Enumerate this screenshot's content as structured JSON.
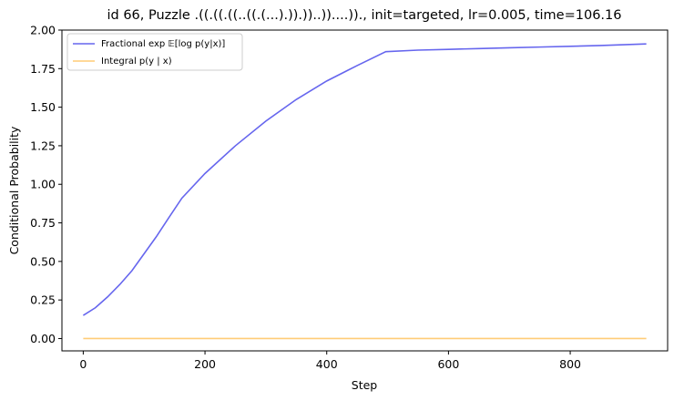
{
  "chart_data": {
    "type": "line",
    "title": "id 66, Puzzle .((.((.((..((.(...).)).))..))....))., init=targeted, lr=0.005, time=106.16",
    "xlabel": "Step",
    "ylabel": "Conditional Probability",
    "xlim": [
      -35,
      960
    ],
    "ylim": [
      -0.08,
      2.0
    ],
    "xticks": [
      0,
      200,
      400,
      600,
      800
    ],
    "yticks": [
      0.0,
      0.25,
      0.5,
      0.75,
      1.0,
      1.25,
      1.5,
      1.75,
      2.0
    ],
    "xtick_labels": [
      "0",
      "200",
      "400",
      "600",
      "800"
    ],
    "ytick_labels": [
      "0.00",
      "0.25",
      "0.50",
      "0.75",
      "1.00",
      "1.25",
      "1.50",
      "1.75",
      "2.00"
    ],
    "legend_position": "upper-left",
    "grid": false,
    "series": [
      {
        "name": "Fractional exp 𝔼[log p(y|x)]",
        "color": "#6666ee",
        "x": [
          0,
          20,
          40,
          60,
          80,
          100,
          120,
          140,
          162,
          200,
          250,
          300,
          350,
          400,
          450,
          497,
          550,
          600,
          650,
          700,
          750,
          800,
          850,
          925
        ],
        "y": [
          0.15,
          0.2,
          0.27,
          0.35,
          0.44,
          0.55,
          0.66,
          0.78,
          0.91,
          1.07,
          1.25,
          1.41,
          1.55,
          1.67,
          1.77,
          1.86,
          1.87,
          1.875,
          1.88,
          1.885,
          1.89,
          1.895,
          1.9,
          1.91
        ]
      },
      {
        "name": "Integral p(y | x)",
        "color": "#ffcc77",
        "x": [
          0,
          925
        ],
        "y": [
          0.0,
          0.0
        ]
      }
    ]
  }
}
